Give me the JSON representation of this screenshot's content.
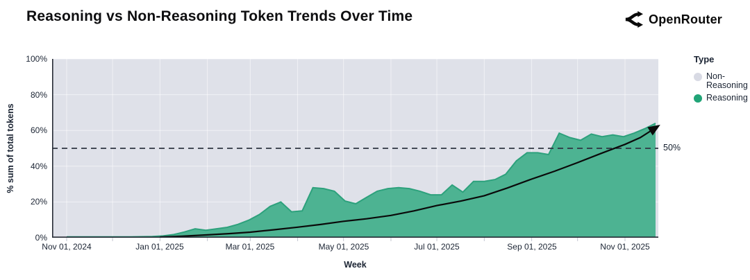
{
  "header": {
    "title": "Reasoning vs Non-Reasoning Token Trends Over Time",
    "brand": "OpenRouter"
  },
  "legend": {
    "title": "Type",
    "items": [
      {
        "label": "Non-Reasoning",
        "color": "#d8dae4"
      },
      {
        "label": "Reasoning",
        "color": "#21a477"
      }
    ]
  },
  "annotations": {
    "ref_line_label": "50%"
  },
  "colors": {
    "area_fill": "#4db392",
    "area_stroke": "#2da17c",
    "plot_bg": "#dfe1e9",
    "axis_line": "#262b35",
    "grid_line": "rgba(255,255,255,0.55)",
    "tick_mark": "#c2c5d0",
    "trend_line": "#0a0a0a",
    "ref_line": "#2f3542",
    "text": "#1b2433"
  },
  "chart_data": {
    "type": "area",
    "title": "Reasoning vs Non-Reasoning Token Trends Over Time",
    "xlabel": "Week",
    "ylabel": "% sum of total tokens",
    "ylim": [
      0,
      100
    ],
    "y_ticks": [
      "0%",
      "20%",
      "40%",
      "60%",
      "80%",
      "100%"
    ],
    "x_ticks": [
      "Nov 01, 2024",
      "Jan 01, 2025",
      "Mar 01, 2025",
      "May 01, 2025",
      "Jul 01, 2025",
      "Sep 01, 2025",
      "Nov 01, 2025"
    ],
    "x_start": "2024-11-01",
    "x_interval": "weekly",
    "grid": true,
    "legend_position": "right",
    "ref_line_pct": 50,
    "series": [
      {
        "name": "Reasoning",
        "unit": "% sum of total tokens",
        "values": [
          0.5,
          0.5,
          0.5,
          0.5,
          0.5,
          0.5,
          0.5,
          0.6,
          0.7,
          1.0,
          1.8,
          3.2,
          5.0,
          4.2,
          5.0,
          5.8,
          7.5,
          9.8,
          13.0,
          17.5,
          20.0,
          14.5,
          15.0,
          28.0,
          27.5,
          26.0,
          20.5,
          19.0,
          22.5,
          26.0,
          27.5,
          28.0,
          27.5,
          26.0,
          24.0,
          24.0,
          29.5,
          25.5,
          31.5,
          31.5,
          32.5,
          35.5,
          43.0,
          47.5,
          47.5,
          46.5,
          58.5,
          56.0,
          54.5,
          58.0,
          56.5,
          57.5,
          56.5,
          58.5,
          61.0,
          64.0
        ]
      }
    ],
    "trend_points_day_pct": [
      [
        61,
        0.4
      ],
      [
        75,
        0.8
      ],
      [
        92,
        1.6
      ],
      [
        106,
        2.3
      ],
      [
        120,
        3.1
      ],
      [
        135,
        4.4
      ],
      [
        151,
        5.9
      ],
      [
        166,
        7.4
      ],
      [
        181,
        9.2
      ],
      [
        196,
        10.6
      ],
      [
        212,
        12.5
      ],
      [
        227,
        15.0
      ],
      [
        242,
        18.0
      ],
      [
        258,
        20.6
      ],
      [
        273,
        23.5
      ],
      [
        288,
        27.8
      ],
      [
        304,
        32.8
      ],
      [
        319,
        37.2
      ],
      [
        334,
        42.0
      ],
      [
        349,
        47.0
      ],
      [
        365,
        52.2
      ],
      [
        375,
        56.0
      ],
      [
        386,
        62.0
      ]
    ],
    "month_gridline_day_offsets": [
      0,
      30,
      61,
      92,
      120,
      151,
      181,
      212,
      242,
      273,
      304,
      334,
      365
    ]
  }
}
